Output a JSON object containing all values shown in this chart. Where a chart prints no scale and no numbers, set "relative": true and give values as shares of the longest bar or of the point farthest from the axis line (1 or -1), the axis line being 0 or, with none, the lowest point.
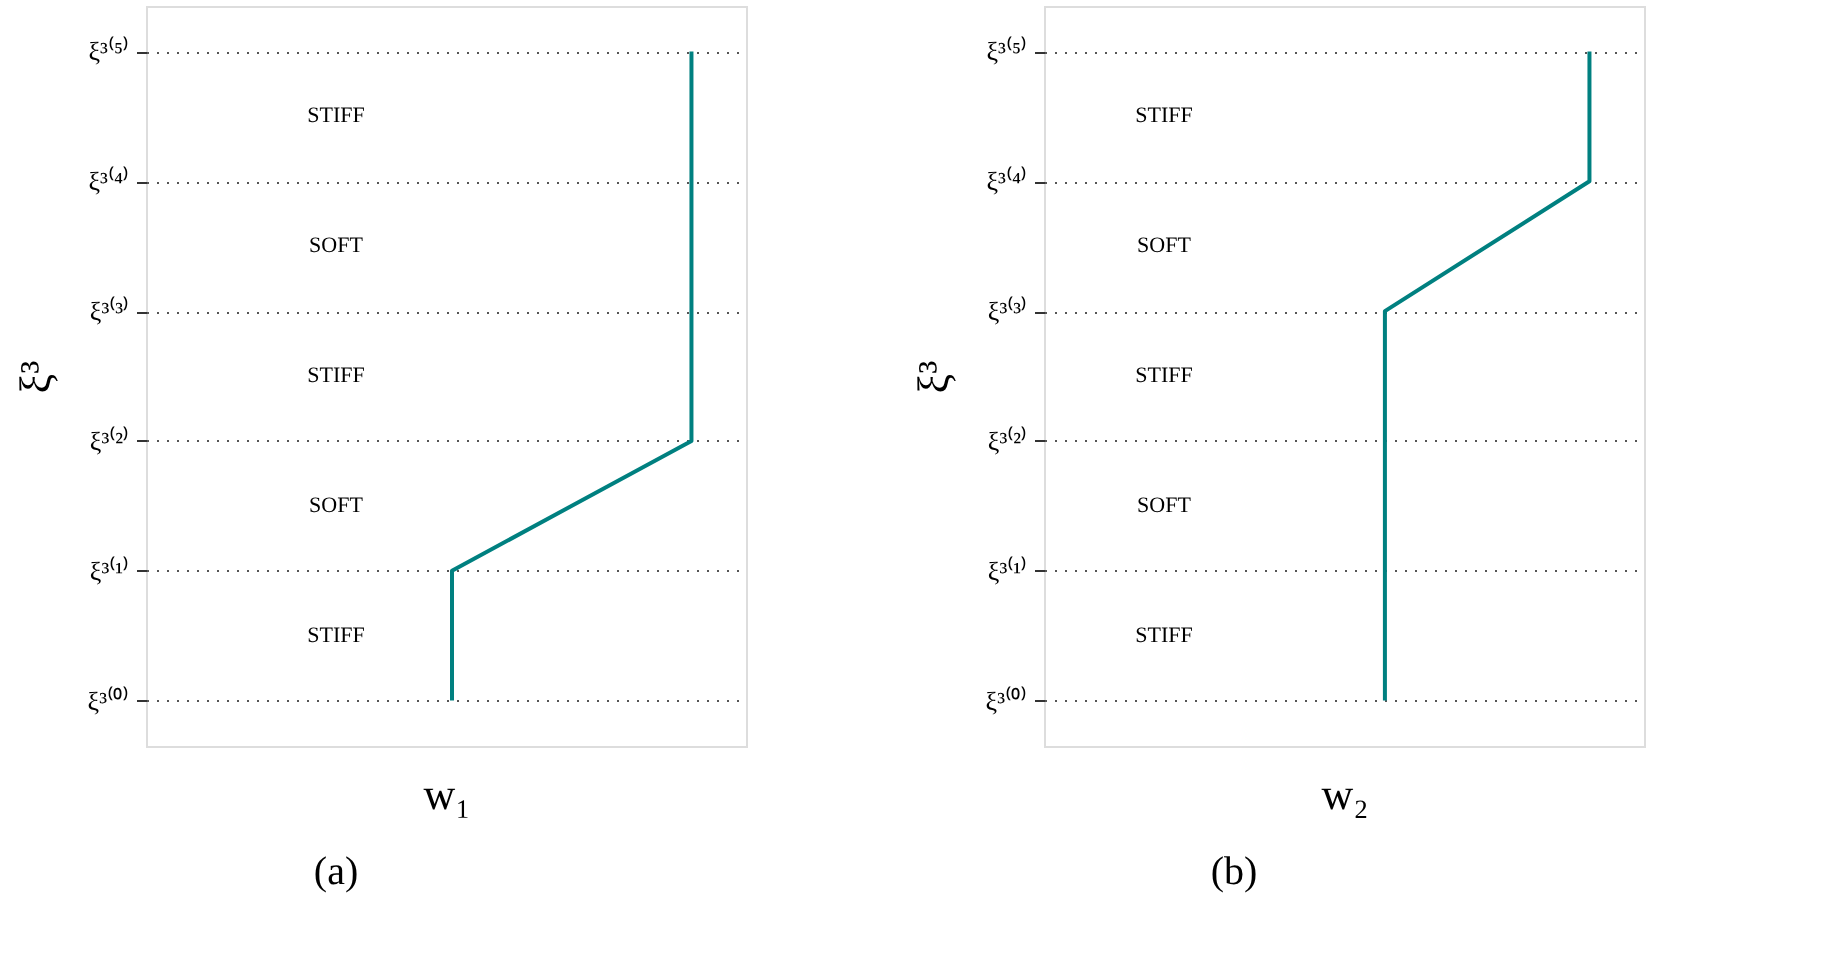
{
  "chart_data": [
    {
      "type": "line",
      "orientation": "horizontal",
      "relative": true,
      "title": "(a)",
      "xlabel": "w₁",
      "ylabel": "ξ³",
      "tick_labels": "y",
      "grid": "y",
      "line_style": "solid",
      "categories": [
        "ξ³⁽⁵⁾",
        "ξ³⁽⁴⁾",
        "ξ³⁽³⁾",
        "ξ³⁽²⁾",
        "ξ³⁽¹⁾",
        "ξ³⁽⁰⁾"
      ],
      "series": [
        {
          "color": "#008080",
          "values": [
            1,
            1,
            1,
            1,
            0.561,
            0.561
          ]
        }
      ],
      "annotations": [
        "STIFF",
        "SOFT",
        "STIFF",
        "SOFT",
        "STIFF"
      ]
    },
    {
      "type": "line",
      "orientation": "horizontal",
      "relative": true,
      "title": "(b)",
      "xlabel": "w₂",
      "ylabel": "ξ³",
      "tick_labels": "y",
      "grid": "y",
      "line_style": "solid",
      "categories": [
        "ξ³⁽⁵⁾",
        "ξ³⁽⁴⁾",
        "ξ³⁽³⁾",
        "ξ³⁽²⁾",
        "ξ³⁽¹⁾",
        "ξ³⁽⁰⁾"
      ],
      "series": [
        {
          "color": "#008080",
          "values": [
            1,
            1,
            0.625,
            0.625,
            0.625,
            0.625
          ]
        }
      ],
      "annotations": [
        "STIFF",
        "SOFT",
        "STIFF",
        "SOFT",
        "STIFF"
      ]
    }
  ]
}
